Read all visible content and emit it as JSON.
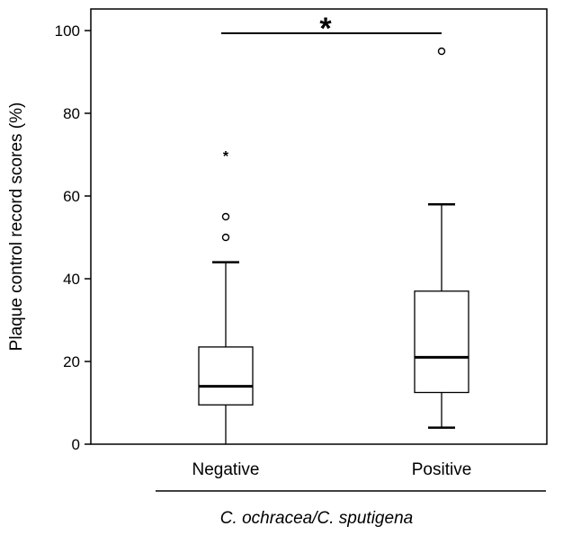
{
  "chart_data": {
    "type": "box",
    "ylabel": "Plaque control record scores (%)",
    "xlabel": "",
    "group_label": "C. ochracea/C. sputigena",
    "ylim": [
      0,
      100
    ],
    "yticks": [
      0,
      20,
      40,
      60,
      80,
      100
    ],
    "categories": [
      "Negative",
      "Positive"
    ],
    "boxes": [
      {
        "category": "Negative",
        "whisker_low": 0,
        "q1": 9.5,
        "median": 14,
        "q3": 23.5,
        "whisker_high": 44,
        "outliers": [
          50,
          55
        ],
        "extremes": [
          70
        ]
      },
      {
        "category": "Positive",
        "whisker_low": 4,
        "q1": 12.5,
        "median": 21,
        "q3": 37,
        "whisker_high": 58,
        "outliers": [
          95
        ],
        "extremes": []
      }
    ],
    "significance": {
      "between": [
        "Negative",
        "Positive"
      ],
      "label": "*"
    },
    "grid": false,
    "legend": "none"
  }
}
